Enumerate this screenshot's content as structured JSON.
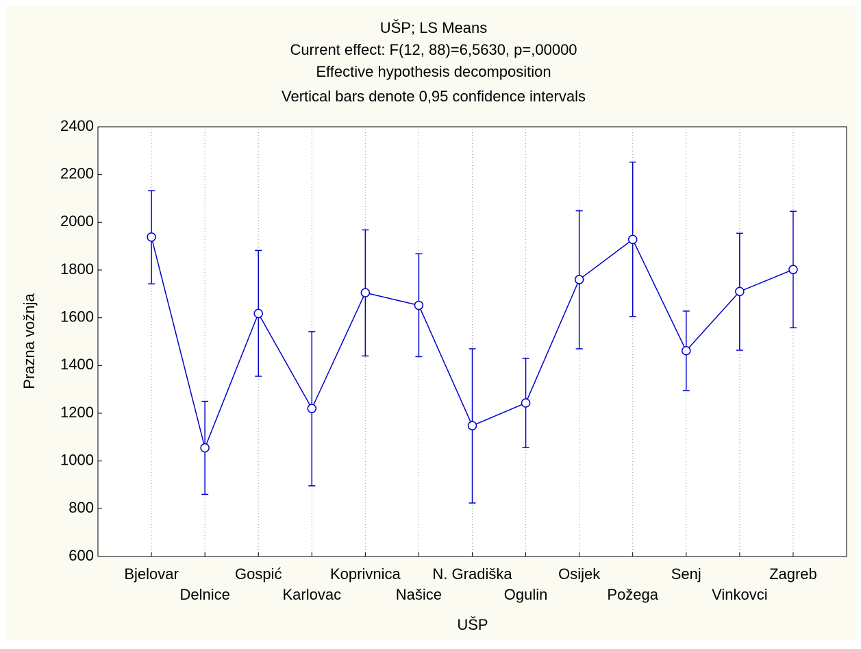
{
  "chart_data": {
    "type": "line",
    "title": "UŠP; LS Means",
    "subtitle": [
      "Current effect: F(12, 88)=6,5630, p=,00000",
      "Effective hypothesis decomposition",
      "Vertical bars denote 0,95 confidence intervals"
    ],
    "x_label": "UŠP",
    "y_label": "Prazna vožnja",
    "categories": [
      "Bjelovar",
      "Delnice",
      "Gospić",
      "Karlovac",
      "Koprivnica",
      "Našice",
      "N. Gradiška",
      "Ogulin",
      "Osijek",
      "Požega",
      "Senj",
      "Vinkovci",
      "Zagreb"
    ],
    "series": [
      {
        "color": "#0000cc",
        "values": [
          1938,
          1055,
          1618,
          1220,
          1705,
          1652,
          1148,
          1243,
          1760,
          1928,
          1462,
          1710,
          1802
        ],
        "ci_lower": [
          1742,
          860,
          1355,
          896,
          1440,
          1437,
          824,
          1057,
          1470,
          1605,
          1295,
          1464,
          1558
        ],
        "ci_upper": [
          2132,
          1250,
          1882,
          1542,
          1968,
          1868,
          1470,
          1430,
          2048,
          2252,
          1628,
          1954,
          2046
        ]
      }
    ],
    "ylim": [
      600,
      2400
    ],
    "yticks": [
      600,
      800,
      1000,
      1200,
      1400,
      1600,
      1800,
      2000,
      2200,
      2400
    ],
    "grid": "x"
  }
}
